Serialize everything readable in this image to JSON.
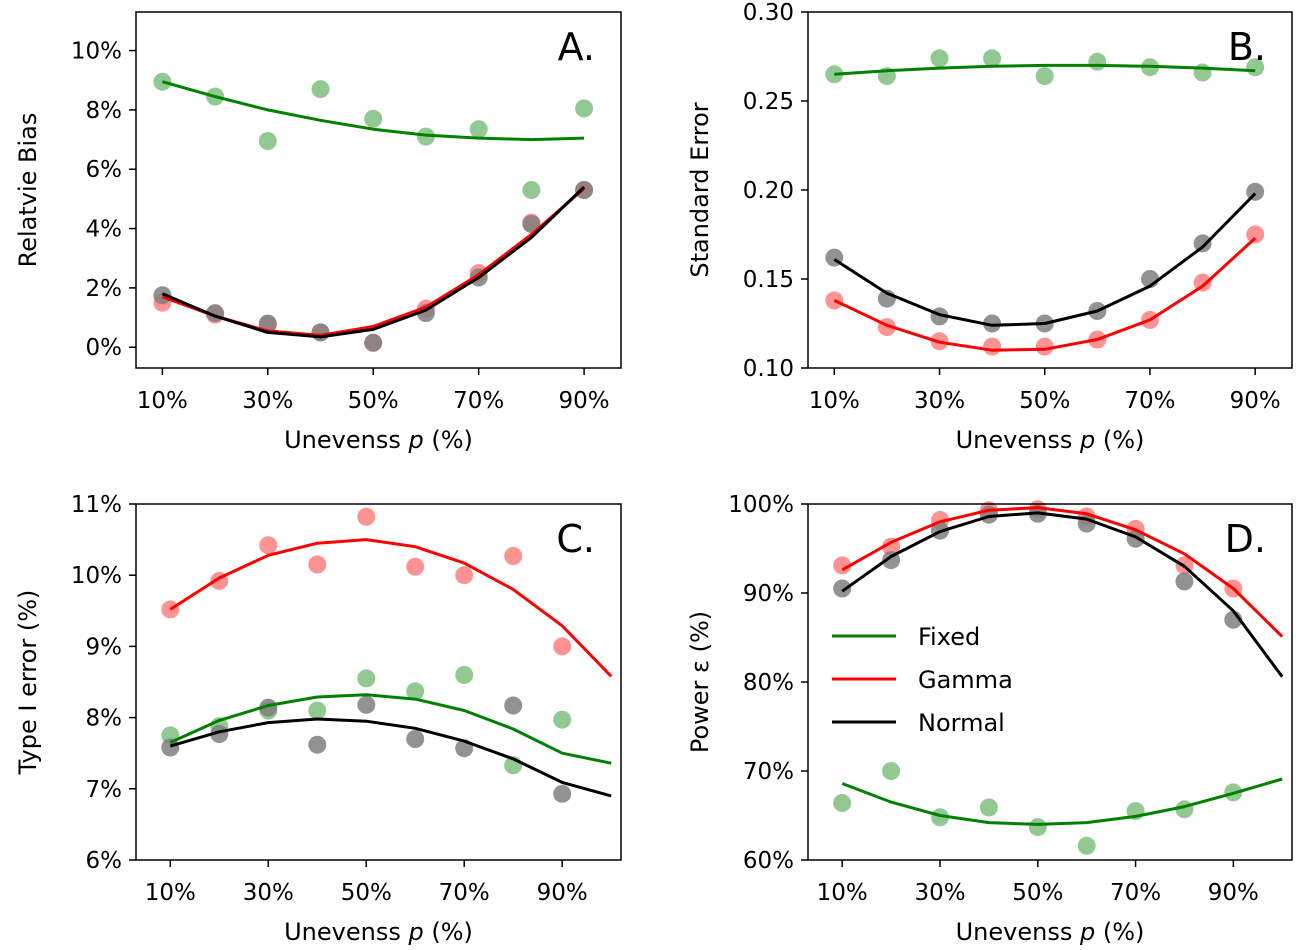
{
  "colors": {
    "fixed": "#008000",
    "gamma": "#ff0000",
    "normal": "#000000",
    "fixed_points": "#7fbf7f",
    "gamma_points": "#ff7f7f",
    "normal_points": "#7f7f7f"
  },
  "legend": {
    "placement": "center-left of panel D",
    "entries": [
      {
        "name": "Fixed",
        "color": "#008000"
      },
      {
        "name": "Gamma",
        "color": "#ff0000"
      },
      {
        "name": "Normal",
        "color": "#000000"
      }
    ]
  },
  "chart_data": [
    {
      "panel": "A.",
      "type": "scatter",
      "xlabel_prefix": "Unevenss ",
      "xlabel_italic": "p",
      "xlabel_suffix": " (%)",
      "ylabel": "Relatvie Bias",
      "xlim": [
        5,
        97
      ],
      "ylim": [
        -0.7,
        11.3
      ],
      "x_ticks": [
        10,
        30,
        50,
        70,
        90
      ],
      "x_tick_labels": [
        "10%",
        "30%",
        "50%",
        "70%",
        "90%"
      ],
      "y_ticks": [
        0,
        2,
        4,
        6,
        8,
        10
      ],
      "y_tick_labels": [
        "0%",
        "2%",
        "4%",
        "6%",
        "8%",
        "10%"
      ],
      "grid": false,
      "series": [
        {
          "name": "Fixed",
          "color_key": "fixed",
          "points": [
            [
              10,
              8.95
            ],
            [
              20,
              8.45
            ],
            [
              30,
              6.95
            ],
            [
              40,
              8.7
            ],
            [
              50,
              7.7
            ],
            [
              60,
              7.1
            ],
            [
              70,
              7.35
            ],
            [
              80,
              5.3
            ],
            [
              90,
              8.05
            ]
          ],
          "fit": [
            [
              10,
              8.95
            ],
            [
              20,
              8.45
            ],
            [
              30,
              8.0
            ],
            [
              40,
              7.65
            ],
            [
              50,
              7.35
            ],
            [
              60,
              7.15
            ],
            [
              70,
              7.05
            ],
            [
              80,
              7.0
            ],
            [
              90,
              7.05
            ]
          ]
        },
        {
          "name": "Gamma",
          "color_key": "gamma",
          "points": [
            [
              10,
              1.5
            ],
            [
              20,
              1.1
            ],
            [
              30,
              0.75
            ],
            [
              40,
              0.5
            ],
            [
              50,
              0.15
            ],
            [
              60,
              1.3
            ],
            [
              70,
              2.5
            ],
            [
              80,
              4.2
            ],
            [
              90,
              5.3
            ]
          ],
          "fit": [
            [
              10,
              1.7
            ],
            [
              20,
              1.05
            ],
            [
              30,
              0.55
            ],
            [
              40,
              0.4
            ],
            [
              50,
              0.7
            ],
            [
              60,
              1.35
            ],
            [
              70,
              2.45
            ],
            [
              80,
              3.8
            ],
            [
              90,
              5.35
            ]
          ]
        },
        {
          "name": "Normal",
          "color_key": "normal",
          "points": [
            [
              10,
              1.75
            ],
            [
              20,
              1.15
            ],
            [
              30,
              0.8
            ],
            [
              40,
              0.5
            ],
            [
              50,
              0.15
            ],
            [
              60,
              1.15
            ],
            [
              70,
              2.35
            ],
            [
              80,
              4.15
            ],
            [
              90,
              5.3
            ]
          ],
          "fit": [
            [
              10,
              1.8
            ],
            [
              20,
              1.05
            ],
            [
              30,
              0.5
            ],
            [
              40,
              0.35
            ],
            [
              50,
              0.6
            ],
            [
              60,
              1.25
            ],
            [
              70,
              2.35
            ],
            [
              80,
              3.7
            ],
            [
              90,
              5.4
            ]
          ]
        }
      ]
    },
    {
      "panel": "B.",
      "type": "scatter",
      "xlabel_prefix": "Unevenss ",
      "xlabel_italic": "p",
      "xlabel_suffix": " (%)",
      "ylabel": "Standard Error",
      "xlim": [
        5,
        97
      ],
      "ylim": [
        0.1,
        0.3
      ],
      "x_ticks": [
        10,
        30,
        50,
        70,
        90
      ],
      "x_tick_labels": [
        "10%",
        "30%",
        "50%",
        "70%",
        "90%"
      ],
      "y_ticks": [
        0.1,
        0.15,
        0.2,
        0.25,
        0.3
      ],
      "y_tick_labels": [
        "0.10",
        "0.15",
        "0.20",
        "0.25",
        "0.30"
      ],
      "grid": false,
      "series": [
        {
          "name": "Fixed",
          "color_key": "fixed",
          "points": [
            [
              10,
              0.265
            ],
            [
              20,
              0.264
            ],
            [
              30,
              0.274
            ],
            [
              40,
              0.274
            ],
            [
              50,
              0.264
            ],
            [
              60,
              0.272
            ],
            [
              70,
              0.269
            ],
            [
              80,
              0.266
            ],
            [
              90,
              0.269
            ]
          ],
          "fit": [
            [
              10,
              0.265
            ],
            [
              20,
              0.267
            ],
            [
              30,
              0.2685
            ],
            [
              40,
              0.2695
            ],
            [
              50,
              0.27
            ],
            [
              60,
              0.27
            ],
            [
              70,
              0.2695
            ],
            [
              80,
              0.2685
            ],
            [
              90,
              0.267
            ]
          ]
        },
        {
          "name": "Gamma",
          "color_key": "gamma",
          "points": [
            [
              10,
              0.138
            ],
            [
              20,
              0.123
            ],
            [
              30,
              0.115
            ],
            [
              40,
              0.112
            ],
            [
              50,
              0.112
            ],
            [
              60,
              0.116
            ],
            [
              70,
              0.127
            ],
            [
              80,
              0.148
            ],
            [
              90,
              0.175
            ]
          ],
          "fit": [
            [
              10,
              0.138
            ],
            [
              20,
              0.124
            ],
            [
              30,
              0.1145
            ],
            [
              40,
              0.11
            ],
            [
              50,
              0.1105
            ],
            [
              60,
              0.116
            ],
            [
              70,
              0.127
            ],
            [
              80,
              0.146
            ],
            [
              90,
              0.173
            ]
          ]
        },
        {
          "name": "Normal",
          "color_key": "normal",
          "points": [
            [
              10,
              0.162
            ],
            [
              20,
              0.139
            ],
            [
              30,
              0.129
            ],
            [
              40,
              0.125
            ],
            [
              50,
              0.125
            ],
            [
              60,
              0.132
            ],
            [
              70,
              0.15
            ],
            [
              80,
              0.17
            ],
            [
              90,
              0.199
            ]
          ],
          "fit": [
            [
              10,
              0.161
            ],
            [
              20,
              0.142
            ],
            [
              30,
              0.13
            ],
            [
              40,
              0.124
            ],
            [
              50,
              0.125
            ],
            [
              60,
              0.132
            ],
            [
              70,
              0.146
            ],
            [
              80,
              0.168
            ],
            [
              90,
              0.198
            ]
          ]
        }
      ]
    },
    {
      "panel": "C.",
      "type": "scatter",
      "xlabel_prefix": "Unevenss ",
      "xlabel_italic": "p",
      "xlabel_suffix": " (%)",
      "ylabel": "Type I error (%)",
      "xlim": [
        3,
        102
      ],
      "ylim": [
        6,
        11
      ],
      "x_ticks": [
        10,
        30,
        50,
        70,
        90
      ],
      "x_tick_labels": [
        "10%",
        "30%",
        "50%",
        "70%",
        "90%"
      ],
      "y_ticks": [
        6,
        7,
        8,
        9,
        10,
        11
      ],
      "y_tick_labels": [
        "6%",
        "7%",
        "8%",
        "9%",
        "10%",
        "11%"
      ],
      "grid": false,
      "series": [
        {
          "name": "Fixed",
          "color_key": "fixed",
          "points": [
            [
              10,
              7.75
            ],
            [
              20,
              7.88
            ],
            [
              30,
              8.1
            ],
            [
              40,
              8.1
            ],
            [
              50,
              8.55
            ],
            [
              60,
              8.37
            ],
            [
              70,
              8.6
            ],
            [
              80,
              7.33
            ],
            [
              90,
              7.97
            ]
          ],
          "fit": [
            [
              10,
              7.65
            ],
            [
              20,
              7.96
            ],
            [
              30,
              8.17
            ],
            [
              40,
              8.29
            ],
            [
              50,
              8.32
            ],
            [
              60,
              8.26
            ],
            [
              70,
              8.1
            ],
            [
              80,
              7.84
            ],
            [
              90,
              7.5
            ],
            [
              100,
              7.36
            ]
          ]
        },
        {
          "name": "Gamma",
          "color_key": "gamma",
          "points": [
            [
              10,
              9.52
            ],
            [
              20,
              9.92
            ],
            [
              30,
              10.42
            ],
            [
              40,
              10.15
            ],
            [
              50,
              10.82
            ],
            [
              60,
              10.12
            ],
            [
              70,
              10.0
            ],
            [
              80,
              10.27
            ],
            [
              90,
              9.0
            ]
          ],
          "fit": [
            [
              10,
              9.52
            ],
            [
              20,
              9.96
            ],
            [
              30,
              10.28
            ],
            [
              40,
              10.45
            ],
            [
              50,
              10.5
            ],
            [
              60,
              10.4
            ],
            [
              70,
              10.17
            ],
            [
              80,
              9.8
            ],
            [
              90,
              9.29
            ],
            [
              100,
              8.58
            ]
          ]
        },
        {
          "name": "Normal",
          "color_key": "normal",
          "points": [
            [
              10,
              7.58
            ],
            [
              20,
              7.77
            ],
            [
              30,
              8.14
            ],
            [
              40,
              7.62
            ],
            [
              50,
              8.18
            ],
            [
              60,
              7.7
            ],
            [
              70,
              7.57
            ],
            [
              80,
              8.17
            ],
            [
              90,
              6.93
            ]
          ],
          "fit": [
            [
              10,
              7.6
            ],
            [
              20,
              7.8
            ],
            [
              30,
              7.93
            ],
            [
              40,
              7.98
            ],
            [
              50,
              7.95
            ],
            [
              60,
              7.85
            ],
            [
              70,
              7.67
            ],
            [
              80,
              7.42
            ],
            [
              90,
              7.09
            ],
            [
              100,
              6.9
            ]
          ]
        }
      ]
    },
    {
      "panel": "D.",
      "type": "scatter",
      "xlabel_prefix": "Unevenss ",
      "xlabel_italic": "p",
      "xlabel_suffix": " (%)",
      "ylabel": "Power ε (%)",
      "xlim": [
        3,
        102
      ],
      "ylim": [
        60,
        100
      ],
      "x_ticks": [
        10,
        30,
        50,
        70,
        90
      ],
      "x_tick_labels": [
        "10%",
        "30%",
        "50%",
        "70%",
        "90%"
      ],
      "y_ticks": [
        60,
        70,
        80,
        90,
        100
      ],
      "y_tick_labels": [
        "60%",
        "70%",
        "80%",
        "90%",
        "100%"
      ],
      "grid": false,
      "series": [
        {
          "name": "Fixed",
          "color_key": "fixed",
          "points": [
            [
              10,
              66.4
            ],
            [
              20,
              70.0
            ],
            [
              30,
              64.8
            ],
            [
              40,
              65.9
            ],
            [
              50,
              63.7
            ],
            [
              60,
              61.6
            ],
            [
              70,
              65.5
            ],
            [
              80,
              65.7
            ],
            [
              90,
              67.6
            ]
          ],
          "fit": [
            [
              10,
              68.6
            ],
            [
              20,
              66.5
            ],
            [
              30,
              65.0
            ],
            [
              40,
              64.2
            ],
            [
              50,
              64.0
            ],
            [
              60,
              64.2
            ],
            [
              70,
              64.9
            ],
            [
              80,
              66.0
            ],
            [
              90,
              67.5
            ],
            [
              100,
              69.1
            ]
          ]
        },
        {
          "name": "Gamma",
          "color_key": "gamma",
          "points": [
            [
              10,
              93.1
            ],
            [
              20,
              95.2
            ],
            [
              30,
              98.2
            ],
            [
              40,
              99.3
            ],
            [
              50,
              99.4
            ],
            [
              60,
              98.6
            ],
            [
              70,
              97.2
            ],
            [
              80,
              93.1
            ],
            [
              90,
              90.5
            ]
          ],
          "fit": [
            [
              10,
              92.6
            ],
            [
              20,
              95.7
            ],
            [
              30,
              98.0
            ],
            [
              40,
              99.3
            ],
            [
              50,
              99.6
            ],
            [
              60,
              98.9
            ],
            [
              70,
              97.1
            ],
            [
              80,
              94.4
            ],
            [
              90,
              90.5
            ],
            [
              100,
              85.1
            ]
          ]
        },
        {
          "name": "Normal",
          "color_key": "normal",
          "points": [
            [
              10,
              90.5
            ],
            [
              20,
              93.7
            ],
            [
              30,
              97.0
            ],
            [
              40,
              98.8
            ],
            [
              50,
              98.9
            ],
            [
              60,
              97.8
            ],
            [
              70,
              96.1
            ],
            [
              80,
              91.3
            ],
            [
              90,
              87.0
            ]
          ],
          "fit": [
            [
              10,
              90.2
            ],
            [
              20,
              94.1
            ],
            [
              30,
              96.9
            ],
            [
              40,
              98.6
            ],
            [
              50,
              99.0
            ],
            [
              60,
              98.3
            ],
            [
              70,
              96.3
            ],
            [
              80,
              93.0
            ],
            [
              90,
              88.0
            ],
            [
              100,
              80.6
            ]
          ]
        }
      ]
    }
  ]
}
